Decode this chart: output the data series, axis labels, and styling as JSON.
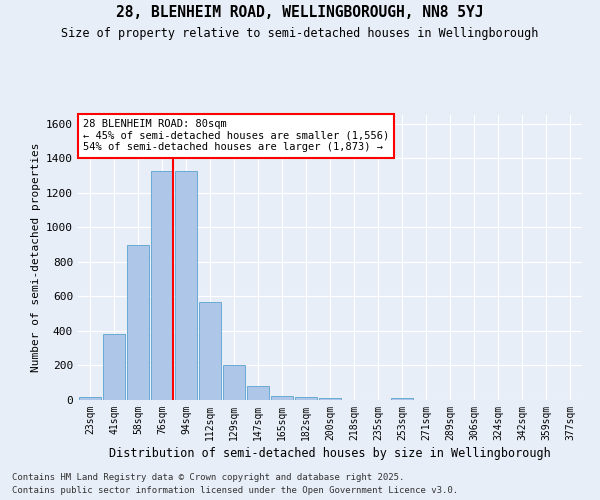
{
  "title": "28, BLENHEIM ROAD, WELLINGBOROUGH, NN8 5YJ",
  "subtitle": "Size of property relative to semi-detached houses in Wellingborough",
  "xlabel": "Distribution of semi-detached houses by size in Wellingborough",
  "ylabel": "Number of semi-detached properties",
  "categories": [
    "23sqm",
    "41sqm",
    "58sqm",
    "76sqm",
    "94sqm",
    "112sqm",
    "129sqm",
    "147sqm",
    "165sqm",
    "182sqm",
    "200sqm",
    "218sqm",
    "235sqm",
    "253sqm",
    "271sqm",
    "289sqm",
    "306sqm",
    "324sqm",
    "342sqm",
    "359sqm",
    "377sqm"
  ],
  "values": [
    18,
    385,
    900,
    1325,
    1325,
    570,
    205,
    80,
    25,
    15,
    10,
    0,
    0,
    10,
    0,
    0,
    0,
    0,
    0,
    0,
    0
  ],
  "bar_color": "#aec6e8",
  "bar_edge_color": "#6aaad4",
  "red_line_index": 3,
  "annotation_title": "28 BLENHEIM ROAD: 80sqm",
  "annotation_line1": "← 45% of semi-detached houses are smaller (1,556)",
  "annotation_line2": "54% of semi-detached houses are larger (1,873) →",
  "ylim": [
    0,
    1650
  ],
  "yticks": [
    0,
    200,
    400,
    600,
    800,
    1000,
    1200,
    1400,
    1600
  ],
  "background_color": "#e8eef8",
  "grid_color": "#ffffff",
  "footnote1": "Contains HM Land Registry data © Crown copyright and database right 2025.",
  "footnote2": "Contains public sector information licensed under the Open Government Licence v3.0."
}
